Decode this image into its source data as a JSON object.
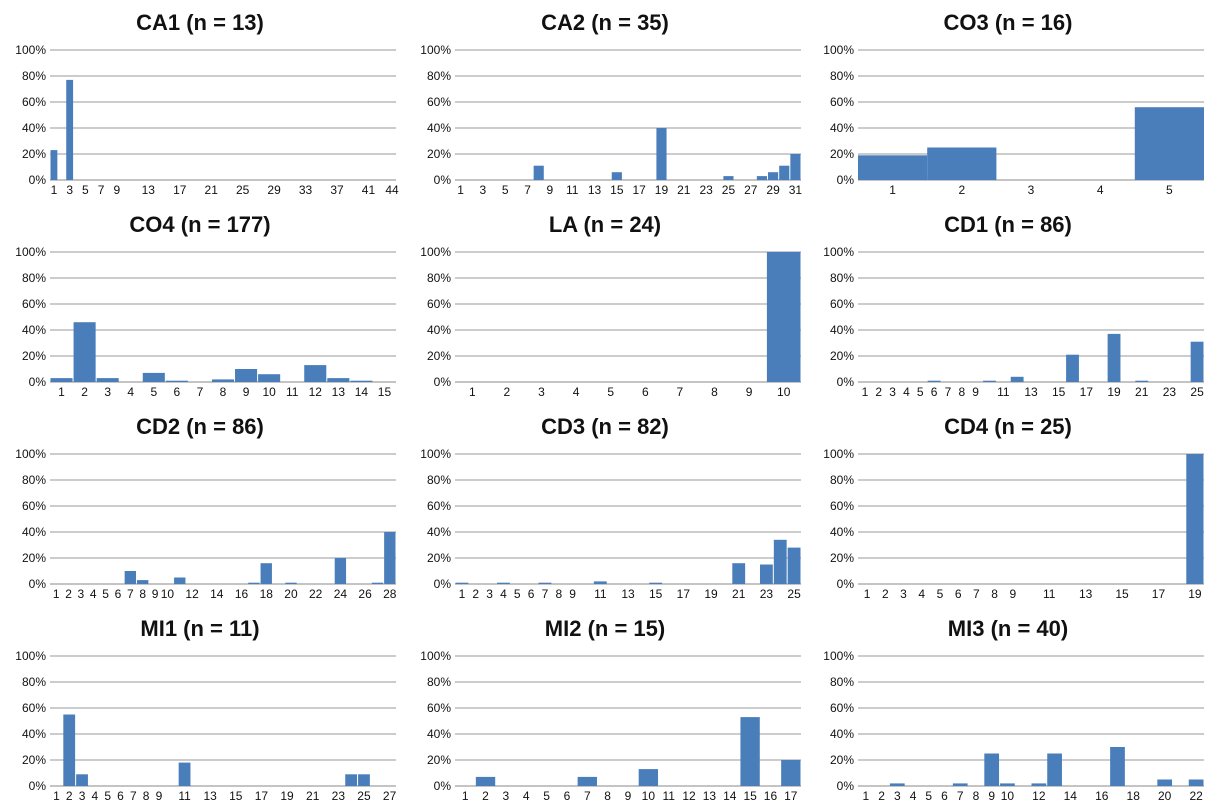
{
  "chart_data": [
    {
      "type": "bar",
      "title": "CA1 (n = 13)",
      "x": [
        1,
        2,
        3,
        4,
        5,
        6,
        7,
        8,
        9,
        10,
        11,
        12,
        13,
        14,
        15,
        16,
        17,
        18,
        19,
        20,
        21,
        22,
        23,
        24,
        25,
        26,
        27,
        28,
        29,
        30,
        31,
        32,
        33,
        34,
        35,
        36,
        37,
        38,
        39,
        40,
        41,
        42,
        43,
        44
      ],
      "values": [
        23,
        0,
        77,
        0,
        0,
        0,
        0,
        0,
        0,
        0,
        0,
        0,
        0,
        0,
        0,
        0,
        0,
        0,
        0,
        0,
        0,
        0,
        0,
        0,
        0,
        0,
        0,
        0,
        0,
        0,
        0,
        0,
        0,
        0,
        0,
        0,
        0,
        0,
        0,
        0,
        0,
        0,
        0,
        0
      ],
      "xtick_labels": [
        "1",
        "3",
        "5",
        "7",
        "9",
        "13",
        "17",
        "21",
        "25",
        "29",
        "33",
        "37",
        "41",
        "44"
      ],
      "yticks": [
        "0%",
        "20%",
        "40%",
        "60%",
        "80%",
        "100%"
      ],
      "ylim": [
        0,
        100
      ],
      "grid": true,
      "color": "#4a7ebb"
    },
    {
      "type": "bar",
      "title": "CA2 (n = 35)",
      "x": [
        1,
        2,
        3,
        4,
        5,
        6,
        7,
        8,
        9,
        10,
        11,
        12,
        13,
        14,
        15,
        16,
        17,
        18,
        19,
        20,
        21,
        22,
        23,
        24,
        25,
        26,
        27,
        28,
        29,
        30,
        31
      ],
      "values": [
        0,
        0,
        0,
        0,
        0,
        0,
        0,
        11,
        0,
        0,
        0,
        0,
        0,
        0,
        6,
        0,
        0,
        0,
        40,
        0,
        0,
        0,
        0,
        0,
        3,
        0,
        0,
        3,
        6,
        11,
        20
      ],
      "xtick_labels": [
        "1",
        "3",
        "5",
        "7",
        "9",
        "11",
        "13",
        "15",
        "17",
        "19",
        "21",
        "23",
        "25",
        "27",
        "29",
        "31"
      ],
      "yticks": [
        "0%",
        "20%",
        "40%",
        "60%",
        "80%",
        "100%"
      ],
      "ylim": [
        0,
        100
      ],
      "grid": true,
      "color": "#4a7ebb"
    },
    {
      "type": "bar",
      "title": "CO3 (n = 16)",
      "x": [
        1,
        2,
        3,
        4,
        5
      ],
      "values": [
        19,
        25,
        0,
        0,
        56
      ],
      "xtick_labels": [
        "1",
        "2",
        "3",
        "4",
        "5"
      ],
      "yticks": [
        "0%",
        "20%",
        "40%",
        "60%",
        "80%",
        "100%"
      ],
      "ylim": [
        0,
        100
      ],
      "grid": true,
      "color": "#4a7ebb"
    },
    {
      "type": "bar",
      "title": "CO4 (n = 177)",
      "x": [
        1,
        2,
        3,
        4,
        5,
        6,
        7,
        8,
        9,
        10,
        11,
        12,
        13,
        14,
        15
      ],
      "values": [
        3,
        46,
        3,
        0,
        7,
        1,
        0,
        2,
        10,
        6,
        0,
        13,
        3,
        1,
        0
      ],
      "xtick_labels": [
        "1",
        "2",
        "3",
        "4",
        "5",
        "6",
        "7",
        "8",
        "9",
        "10",
        "11",
        "12",
        "13",
        "14",
        "15"
      ],
      "yticks": [
        "0%",
        "20%",
        "40%",
        "60%",
        "80%",
        "100%"
      ],
      "ylim": [
        0,
        100
      ],
      "grid": true,
      "color": "#4a7ebb"
    },
    {
      "type": "bar",
      "title": "LA (n = 24)",
      "x": [
        1,
        2,
        3,
        4,
        5,
        6,
        7,
        8,
        9,
        10
      ],
      "values": [
        0,
        0,
        0,
        0,
        0,
        0,
        0,
        0,
        0,
        100
      ],
      "xtick_labels": [
        "1",
        "2",
        "3",
        "4",
        "5",
        "6",
        "7",
        "8",
        "9",
        "10"
      ],
      "yticks": [
        "0%",
        "20%",
        "40%",
        "60%",
        "80%",
        "100%"
      ],
      "ylim": [
        0,
        100
      ],
      "grid": true,
      "color": "#4a7ebb"
    },
    {
      "type": "bar",
      "title": "CD1 (n = 86)",
      "x": [
        1,
        2,
        3,
        4,
        5,
        6,
        7,
        8,
        9,
        10,
        11,
        12,
        13,
        14,
        15,
        16,
        17,
        18,
        19,
        20,
        21,
        22,
        23,
        24,
        25
      ],
      "values": [
        0,
        0,
        0,
        0,
        0,
        1,
        0,
        0,
        0,
        1,
        0,
        4,
        0,
        0,
        0,
        21,
        0,
        0,
        37,
        0,
        1,
        0,
        0,
        0,
        31
      ],
      "xtick_labels": [
        "1",
        "2",
        "3",
        "4",
        "5",
        "6",
        "7",
        "8",
        "9",
        "11",
        "13",
        "15",
        "17",
        "19",
        "21",
        "23",
        "25"
      ],
      "yticks": [
        "0%",
        "20%",
        "40%",
        "60%",
        "80%",
        "100%"
      ],
      "ylim": [
        0,
        100
      ],
      "grid": true,
      "color": "#4a7ebb"
    },
    {
      "type": "bar",
      "title": "CD2 (n = 86)",
      "x": [
        1,
        2,
        3,
        4,
        5,
        6,
        7,
        8,
        9,
        10,
        11,
        12,
        13,
        14,
        15,
        16,
        17,
        18,
        19,
        20,
        21,
        22,
        23,
        24,
        25,
        26,
        27,
        28
      ],
      "values": [
        0,
        0,
        0,
        0,
        0,
        0,
        10,
        3,
        0,
        0,
        5,
        0,
        0,
        0,
        0,
        0,
        1,
        16,
        0,
        1,
        0,
        0,
        0,
        20,
        0,
        0,
        1,
        40
      ],
      "xtick_labels": [
        "1",
        "2",
        "3",
        "4",
        "5",
        "6",
        "7",
        "8",
        "9",
        "10",
        "12",
        "14",
        "16",
        "18",
        "20",
        "22",
        "24",
        "26",
        "28"
      ],
      "yticks": [
        "0%",
        "20%",
        "40%",
        "60%",
        "80%",
        "100%"
      ],
      "ylim": [
        0,
        100
      ],
      "grid": true,
      "color": "#4a7ebb"
    },
    {
      "type": "bar",
      "title": "CD3 (n = 82)",
      "x": [
        1,
        2,
        3,
        4,
        5,
        6,
        7,
        8,
        9,
        10,
        11,
        12,
        13,
        14,
        15,
        16,
        17,
        18,
        19,
        20,
        21,
        22,
        23,
        24,
        25
      ],
      "values": [
        1,
        0,
        0,
        1,
        0,
        0,
        1,
        0,
        0,
        0,
        2,
        0,
        0,
        0,
        1,
        0,
        0,
        0,
        0,
        0,
        16,
        0,
        15,
        34,
        28
      ],
      "xtick_labels": [
        "1",
        "2",
        "3",
        "4",
        "5",
        "6",
        "7",
        "8",
        "9",
        "11",
        "13",
        "15",
        "17",
        "19",
        "21",
        "23",
        "25"
      ],
      "yticks": [
        "0%",
        "20%",
        "40%",
        "60%",
        "80%",
        "100%"
      ],
      "ylim": [
        0,
        100
      ],
      "grid": true,
      "color": "#4a7ebb"
    },
    {
      "type": "bar",
      "title": "CD4 (n = 25)",
      "x": [
        1,
        2,
        3,
        4,
        5,
        6,
        7,
        8,
        9,
        10,
        11,
        12,
        13,
        14,
        15,
        16,
        17,
        18,
        19
      ],
      "values": [
        0,
        0,
        0,
        0,
        0,
        0,
        0,
        0,
        0,
        0,
        0,
        0,
        0,
        0,
        0,
        0,
        0,
        0,
        100
      ],
      "xtick_labels": [
        "1",
        "2",
        "3",
        "4",
        "5",
        "6",
        "7",
        "8",
        "9",
        "11",
        "13",
        "15",
        "17",
        "19"
      ],
      "yticks": [
        "0%",
        "20%",
        "40%",
        "60%",
        "80%",
        "100%"
      ],
      "ylim": [
        0,
        100
      ],
      "grid": true,
      "color": "#4a7ebb"
    },
    {
      "type": "bar",
      "title": "MI1 (n = 11)",
      "x": [
        1,
        2,
        3,
        4,
        5,
        6,
        7,
        8,
        9,
        10,
        11,
        12,
        13,
        14,
        15,
        16,
        17,
        18,
        19,
        20,
        21,
        22,
        23,
        24,
        25,
        26,
        27
      ],
      "values": [
        0,
        55,
        9,
        0,
        0,
        0,
        0,
        0,
        0,
        0,
        18,
        0,
        0,
        0,
        0,
        0,
        0,
        0,
        0,
        0,
        0,
        0,
        0,
        9,
        9,
        0,
        0
      ],
      "xtick_labels": [
        "1",
        "2",
        "3",
        "4",
        "5",
        "6",
        "7",
        "8",
        "9",
        "11",
        "13",
        "15",
        "17",
        "19",
        "21",
        "23",
        "25",
        "27"
      ],
      "yticks": [
        "0%",
        "20%",
        "40%",
        "60%",
        "80%",
        "100%"
      ],
      "ylim": [
        0,
        100
      ],
      "grid": true,
      "color": "#4a7ebb"
    },
    {
      "type": "bar",
      "title": "MI2 (n = 15)",
      "x": [
        1,
        2,
        3,
        4,
        5,
        6,
        7,
        8,
        9,
        10,
        11,
        12,
        13,
        14,
        15,
        16,
        17
      ],
      "values": [
        0,
        7,
        0,
        0,
        0,
        0,
        7,
        0,
        0,
        13,
        0,
        0,
        0,
        0,
        53,
        0,
        20
      ],
      "xtick_labels": [
        "1",
        "2",
        "3",
        "4",
        "5",
        "6",
        "7",
        "8",
        "9",
        "10",
        "11",
        "12",
        "13",
        "14",
        "15",
        "16",
        "17"
      ],
      "yticks": [
        "0%",
        "20%",
        "40%",
        "60%",
        "80%",
        "100%"
      ],
      "ylim": [
        0,
        100
      ],
      "grid": true,
      "color": "#4a7ebb"
    },
    {
      "type": "bar",
      "title": "MI3 (n = 40)",
      "x": [
        1,
        2,
        3,
        4,
        5,
        6,
        7,
        8,
        9,
        10,
        11,
        12,
        13,
        14,
        15,
        16,
        17,
        18,
        19,
        20,
        21,
        22
      ],
      "values": [
        0,
        0,
        2,
        0,
        0,
        0,
        2,
        0,
        25,
        2,
        0,
        2,
        25,
        0,
        0,
        0,
        30,
        0,
        0,
        5,
        0,
        5
      ],
      "xtick_labels": [
        "1",
        "2",
        "3",
        "4",
        "5",
        "6",
        "7",
        "8",
        "9",
        "10",
        "12",
        "14",
        "16",
        "18",
        "20",
        "22"
      ],
      "yticks": [
        "0%",
        "20%",
        "40%",
        "60%",
        "80%",
        "100%"
      ],
      "ylim": [
        0,
        100
      ],
      "grid": true,
      "color": "#4a7ebb"
    }
  ]
}
